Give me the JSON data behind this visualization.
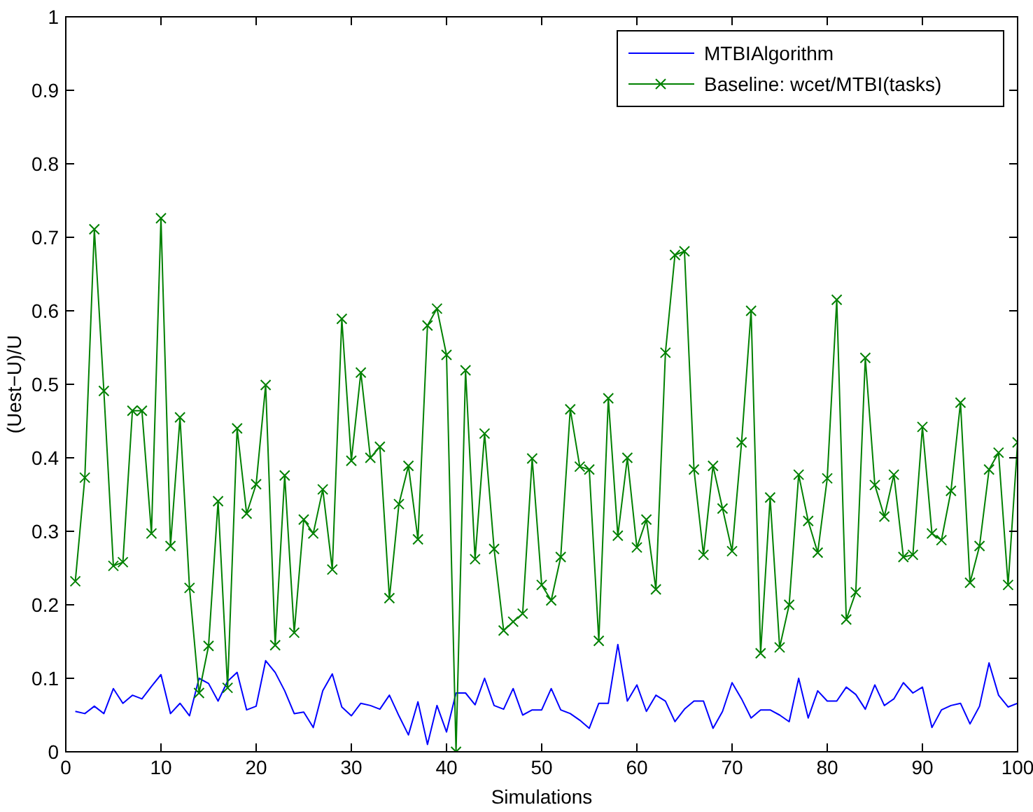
{
  "chart_data": {
    "type": "line",
    "xlabel": "Simulations",
    "ylabel": "(Uest−U)/U",
    "xlim": [
      0,
      100
    ],
    "ylim": [
      0,
      1
    ],
    "xticks": [
      0,
      10,
      20,
      30,
      40,
      50,
      60,
      70,
      80,
      90,
      100
    ],
    "yticks": [
      0,
      0.1,
      0.2,
      0.3,
      0.4,
      0.5,
      0.6,
      0.7,
      0.8,
      0.9,
      1
    ],
    "x": [
      1,
      2,
      3,
      4,
      5,
      6,
      7,
      8,
      9,
      10,
      11,
      12,
      13,
      14,
      15,
      16,
      17,
      18,
      19,
      20,
      21,
      22,
      23,
      24,
      25,
      26,
      27,
      28,
      29,
      30,
      31,
      32,
      33,
      34,
      35,
      36,
      37,
      38,
      39,
      40,
      41,
      42,
      43,
      44,
      45,
      46,
      47,
      48,
      49,
      50,
      51,
      52,
      53,
      54,
      55,
      56,
      57,
      58,
      59,
      60,
      61,
      62,
      63,
      64,
      65,
      66,
      67,
      68,
      69,
      70,
      71,
      72,
      73,
      74,
      75,
      76,
      77,
      78,
      79,
      80,
      81,
      82,
      83,
      84,
      85,
      86,
      87,
      88,
      89,
      90,
      91,
      92,
      93,
      94,
      95,
      96,
      97,
      98,
      99,
      100
    ],
    "legend": "top right",
    "grid": false,
    "series": [
      {
        "name": "MTBIAlgorithm",
        "color": "#0000ff",
        "marker": "none",
        "values": [
          0.055,
          0.052,
          0.062,
          0.052,
          0.086,
          0.066,
          0.077,
          0.072,
          0.089,
          0.105,
          0.052,
          0.066,
          0.049,
          0.1,
          0.093,
          0.069,
          0.096,
          0.108,
          0.057,
          0.062,
          0.124,
          0.108,
          0.083,
          0.052,
          0.054,
          0.033,
          0.083,
          0.106,
          0.061,
          0.049,
          0.066,
          0.063,
          0.058,
          0.077,
          0.049,
          0.023,
          0.068,
          0.01,
          0.063,
          0.027,
          0.08,
          0.08,
          0.064,
          0.1,
          0.063,
          0.058,
          0.086,
          0.05,
          0.057,
          0.057,
          0.086,
          0.057,
          0.052,
          0.043,
          0.032,
          0.066,
          0.066,
          0.146,
          0.069,
          0.091,
          0.055,
          0.077,
          0.069,
          0.041,
          0.058,
          0.069,
          0.069,
          0.032,
          0.055,
          0.094,
          0.072,
          0.046,
          0.057,
          0.057,
          0.05,
          0.041,
          0.1,
          0.046,
          0.083,
          0.069,
          0.069,
          0.088,
          0.078,
          0.058,
          0.091,
          0.063,
          0.072,
          0.094,
          0.08,
          0.088,
          0.033,
          0.057,
          0.063,
          0.066,
          0.038,
          0.062,
          0.121,
          0.077,
          0.061,
          0.066
        ]
      },
      {
        "name": "Baseline: wcet/MTBI(tasks)",
        "color": "#008000",
        "marker": "cross",
        "values": [
          0.232,
          0.373,
          0.711,
          0.491,
          0.253,
          0.258,
          0.464,
          0.464,
          0.297,
          0.726,
          0.28,
          0.455,
          0.223,
          0.08,
          0.144,
          0.341,
          0.087,
          0.44,
          0.324,
          0.364,
          0.499,
          0.145,
          0.376,
          0.162,
          0.316,
          0.297,
          0.357,
          0.248,
          0.589,
          0.396,
          0.516,
          0.4,
          0.415,
          0.209,
          0.337,
          0.389,
          0.289,
          0.58,
          0.603,
          0.54,
          0,
          0.519,
          0.262,
          0.433,
          0.276,
          0.165,
          0.177,
          0.188,
          0.399,
          0.227,
          0.206,
          0.265,
          0.466,
          0.388,
          0.384,
          0.151,
          0.481,
          0.294,
          0.4,
          0.278,
          0.316,
          0.221,
          0.543,
          0.676,
          0.681,
          0.384,
          0.268,
          0.389,
          0.331,
          0.273,
          0.421,
          0.6,
          0.134,
          0.346,
          0.142,
          0.2,
          0.377,
          0.314,
          0.271,
          0.372,
          0.615,
          0.18,
          0.217,
          0.536,
          0.363,
          0.32,
          0.377,
          0.265,
          0.268,
          0.442,
          0.297,
          0.288,
          0.355,
          0.475,
          0.23,
          0.28,
          0.384,
          0.407,
          0.227,
          0.421
        ]
      }
    ]
  }
}
